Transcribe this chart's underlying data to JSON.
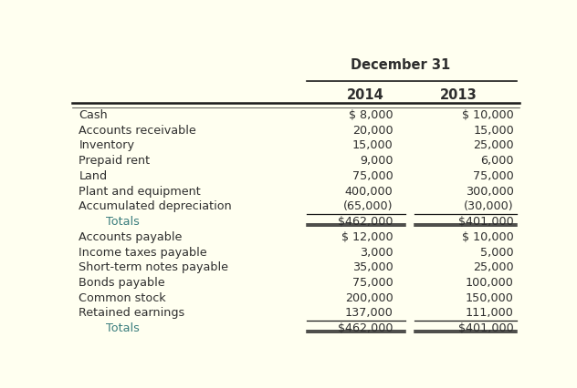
{
  "background_color": "#FFFFF0",
  "header_main": "December 31",
  "col_headers": [
    "2014",
    "2013"
  ],
  "rows": [
    {
      "label": "Cash",
      "val2014": "$ 8,000",
      "val2013": "$ 10,000",
      "indent": false,
      "total": false,
      "double_underline": false
    },
    {
      "label": "Accounts receivable",
      "val2014": "20,000",
      "val2013": "15,000",
      "indent": false,
      "total": false,
      "double_underline": false
    },
    {
      "label": "Inventory",
      "val2014": "15,000",
      "val2013": "25,000",
      "indent": false,
      "total": false,
      "double_underline": false
    },
    {
      "label": "Prepaid rent",
      "val2014": "9,000",
      "val2013": "6,000",
      "indent": false,
      "total": false,
      "double_underline": false
    },
    {
      "label": "Land",
      "val2014": "75,000",
      "val2013": "75,000",
      "indent": false,
      "total": false,
      "double_underline": false
    },
    {
      "label": "Plant and equipment",
      "val2014": "400,000",
      "val2013": "300,000",
      "indent": false,
      "total": false,
      "double_underline": false
    },
    {
      "label": "Accumulated depreciation",
      "val2014": "(65,000)",
      "val2013": "(30,000)",
      "indent": false,
      "total": false,
      "double_underline": false
    },
    {
      "label": "Totals",
      "val2014": "$462,000",
      "val2013": "$401,000",
      "indent": true,
      "total": true,
      "double_underline": true
    },
    {
      "label": "Accounts payable",
      "val2014": "$ 12,000",
      "val2013": "$ 10,000",
      "indent": false,
      "total": false,
      "double_underline": false
    },
    {
      "label": "Income taxes payable",
      "val2014": "3,000",
      "val2013": "5,000",
      "indent": false,
      "total": false,
      "double_underline": false
    },
    {
      "label": "Short-term notes payable",
      "val2014": "35,000",
      "val2013": "25,000",
      "indent": false,
      "total": false,
      "double_underline": false
    },
    {
      "label": "Bonds payable",
      "val2014": "75,000",
      "val2013": "100,000",
      "indent": false,
      "total": false,
      "double_underline": false
    },
    {
      "label": "Common stock",
      "val2014": "200,000",
      "val2013": "150,000",
      "indent": false,
      "total": false,
      "double_underline": false
    },
    {
      "label": "Retained earnings",
      "val2014": "137,000",
      "val2013": "111,000",
      "indent": false,
      "total": false,
      "double_underline": false
    },
    {
      "label": "Totals",
      "val2014": "$462,000",
      "val2013": "$401,000",
      "indent": true,
      "total": true,
      "double_underline": true
    }
  ],
  "text_color": "#2e2e2e",
  "teal_color": "#3a7d7d",
  "line_color": "#1a1a1a",
  "font_size": 9.2,
  "header_font_size": 10.5
}
